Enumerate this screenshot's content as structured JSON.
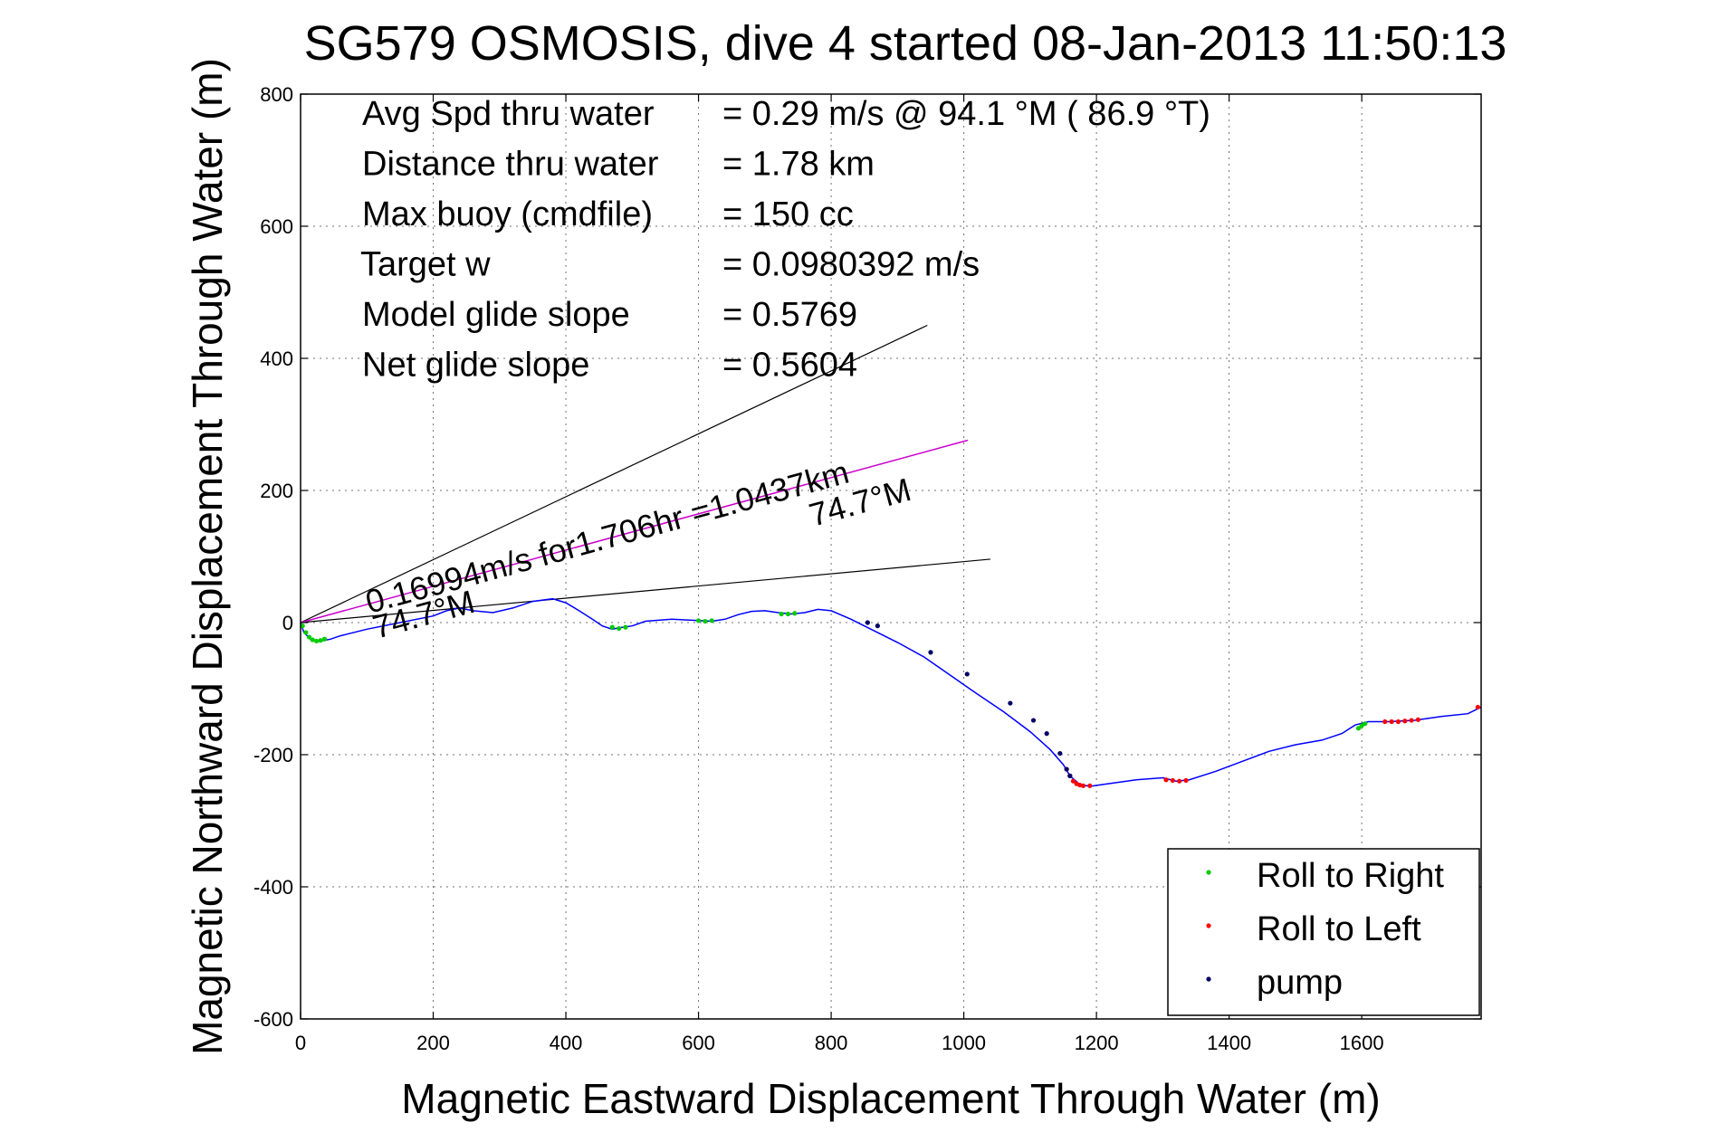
{
  "chart_data": {
    "type": "line",
    "title": "SG579 OSMOSIS, dive 4 started 08-Jan-2013 11:50:13",
    "xlabel": "Magnetic Eastward Displacement Through Water (m)",
    "ylabel": "Magnetic Northward Displacement Through Water (m)",
    "xlim": [
      0,
      1780
    ],
    "ylim": [
      -600,
      800
    ],
    "xticks": [
      0,
      200,
      400,
      600,
      800,
      1000,
      1200,
      1400,
      1600
    ],
    "yticks": [
      -600,
      -400,
      -200,
      0,
      200,
      400,
      600,
      800
    ],
    "grid": true,
    "legend_position": "bottom-right",
    "legend": [
      {
        "label": "Roll to Right",
        "color": "#00cc00"
      },
      {
        "label": "Roll to Left",
        "color": "#ff0000"
      },
      {
        "label": "pump",
        "color": "#000066"
      }
    ],
    "info_lines": [
      {
        "label": "Avg Spd thru water",
        "value": "=  0.29 m/s @  94.1 °M ( 86.9 °T)"
      },
      {
        "label": "Distance thru water",
        "value": "=  1.78 km"
      },
      {
        "label": "Max buoy (cmdfile)",
        "value": "= 150 cc"
      },
      {
        "label": "Target w",
        "value": "= 0.0980392 m/s"
      },
      {
        "label": "Model glide slope",
        "value": "= 0.5769"
      },
      {
        "label": "Net glide slope",
        "value": "= 0.5604"
      }
    ],
    "annotations": {
      "line1": "0.16994m/s for1.706hr =1.0437km",
      "line2_start": "74.7°M",
      "line2_end": "74.7°M"
    },
    "current_line": {
      "x": [
        0,
        1006
      ],
      "y": [
        0,
        276
      ],
      "color": "#cc00cc"
    },
    "cone_lines": [
      {
        "x": [
          0,
          945
        ],
        "y": [
          0,
          450
        ]
      },
      {
        "x": [
          0,
          1040
        ],
        "y": [
          0,
          96
        ]
      }
    ],
    "track": {
      "color": "#0000ff",
      "x": [
        0,
        5,
        15,
        25,
        35,
        45,
        60,
        100,
        150,
        200,
        220,
        240,
        260,
        290,
        320,
        350,
        380,
        400,
        420,
        440,
        455,
        470,
        480,
        500,
        520,
        560,
        600,
        620,
        640,
        660,
        680,
        700,
        720,
        740,
        760,
        780,
        800,
        830,
        860,
        900,
        940,
        980,
        1020,
        1060,
        1100,
        1130,
        1150,
        1160,
        1175,
        1190,
        1210,
        1260,
        1300,
        1320,
        1340,
        1380,
        1420,
        1460,
        1500,
        1540,
        1570,
        1590,
        1610,
        1640,
        1680,
        1720,
        1760,
        1780
      ],
      "y": [
        0,
        -15,
        -25,
        -28,
        -27,
        -25,
        -20,
        -10,
        0,
        10,
        18,
        22,
        18,
        15,
        22,
        32,
        36,
        30,
        18,
        5,
        -5,
        -10,
        -8,
        -5,
        2,
        5,
        3,
        2,
        5,
        12,
        17,
        18,
        15,
        13,
        15,
        20,
        18,
        5,
        -10,
        -30,
        -52,
        -80,
        -108,
        -135,
        -165,
        -192,
        -215,
        -232,
        -245,
        -248,
        -245,
        -238,
        -235,
        -240,
        -238,
        -225,
        -210,
        -195,
        -185,
        -178,
        -168,
        -155,
        -150,
        -150,
        -148,
        -142,
        -138,
        -128
      ]
    },
    "roll_right_points": {
      "x": [
        3,
        8,
        13,
        18,
        24,
        30,
        36,
        470,
        480,
        490,
        600,
        610,
        620,
        725,
        735,
        745,
        1595,
        1600,
        1605
      ],
      "y": [
        -5,
        -15,
        -22,
        -26,
        -28,
        -27,
        -25,
        -7,
        -9,
        -7,
        3,
        2,
        3,
        13,
        13,
        14,
        -160,
        -156,
        -153
      ]
    },
    "roll_left_points": {
      "x": [
        1155,
        1160,
        1165,
        1170,
        1175,
        1180,
        1190,
        1305,
        1315,
        1325,
        1335,
        1635,
        1645,
        1655,
        1665,
        1675,
        1685,
        1775
      ],
      "y": [
        -222,
        -232,
        -240,
        -244,
        -246,
        -247,
        -247,
        -238,
        -239,
        -240,
        -239,
        -150,
        -150,
        -150,
        -149,
        -148,
        -147,
        -128
      ]
    },
    "pump_points": {
      "x": [
        855,
        870,
        950,
        1005,
        1070,
        1105,
        1125,
        1145,
        1155,
        1160
      ],
      "y": [
        0,
        -5,
        -45,
        -78,
        -122,
        -148,
        -168,
        -198,
        -222,
        -232
      ]
    }
  }
}
